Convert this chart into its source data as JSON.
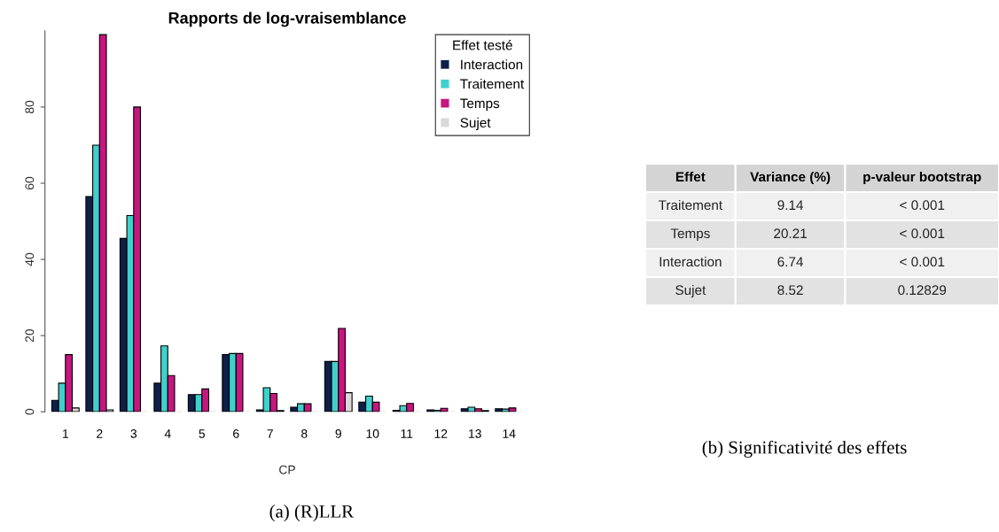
{
  "chart_data": [
    {
      "type": "bar",
      "title": "Rapports de log-vraisemblance",
      "xlabel": "CP",
      "categories": [
        "1",
        "2",
        "3",
        "4",
        "5",
        "6",
        "7",
        "8",
        "9",
        "10",
        "11",
        "12",
        "13",
        "14"
      ],
      "series": [
        {
          "name": "Interaction",
          "color": "#0f1f4b",
          "values": [
            3,
            56.5,
            45.5,
            7.5,
            4.5,
            15,
            0.5,
            1.2,
            13.2,
            2.5,
            0.4,
            0.5,
            0.8,
            0.8
          ]
        },
        {
          "name": "Traitement",
          "color": "#40d0cc",
          "values": [
            7.5,
            70,
            51.5,
            17.3,
            4.5,
            15.3,
            6.3,
            2.1,
            13.2,
            4.1,
            1.6,
            0.4,
            1.2,
            0.7
          ]
        },
        {
          "name": "Temps",
          "color": "#c8157f",
          "values": [
            15,
            99,
            80,
            9.5,
            6,
            15.3,
            4.8,
            2.1,
            21.9,
            2.5,
            2.2,
            0.9,
            0.8,
            1.0
          ]
        },
        {
          "name": "Sujet",
          "color": "#d9d9d9",
          "values": [
            1,
            0.5,
            0,
            0,
            0,
            0,
            0.3,
            0,
            5,
            0,
            0,
            0,
            0.3,
            0
          ]
        }
      ],
      "ylim": [
        0,
        100
      ],
      "yticks": [
        0,
        20,
        40,
        60,
        80
      ],
      "grid": false,
      "legend": "top right",
      "legend_title": "Effet testé",
      "annotations": [
        "(a) (R)LLR"
      ]
    },
    {
      "type": "other",
      "ylabel": "Effet",
      "data_labels": true,
      "categories": [
        "Traitement",
        "Temps",
        "Interaction",
        "Sujet"
      ],
      "series": [
        {
          "name": "Variance (%)",
          "colors": [
            "#f0f0f0",
            "#e2e2e2",
            "#f0f0f0",
            "#e2e2e2"
          ],
          "values": [
            9.14,
            20.21,
            6.74,
            8.52
          ]
        },
        {
          "name": "p-valeur bootstrap",
          "colors": [
            "#f0f0f0",
            "#e2e2e2",
            "#f0f0f0",
            "#e2e2e2"
          ],
          "values": [
            null,
            null,
            null,
            0.12829
          ],
          "value_labels": [
            "< 0.001",
            "< 0.001",
            "< 0.001",
            "0.12829"
          ]
        }
      ],
      "annotations": [
        "(b) Significativité des effets"
      ]
    }
  ]
}
